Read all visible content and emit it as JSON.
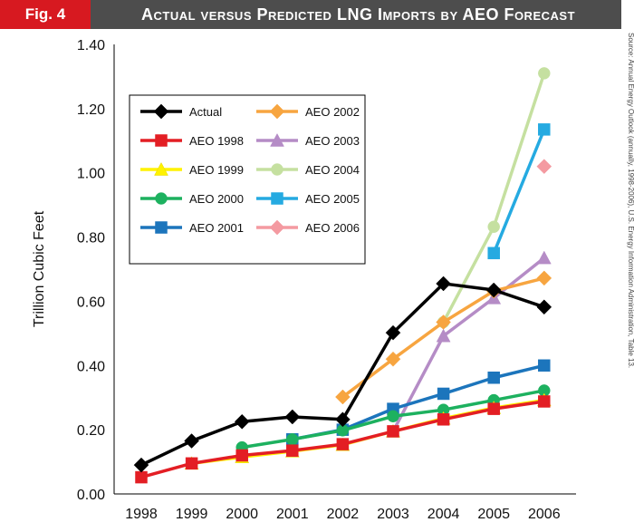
{
  "header": {
    "fig_label": "Fig. 4",
    "title": "Actual versus Predicted LNG Imports by AEO Forecast"
  },
  "source": "Source: Annual Energy Outlook (annually, 1998-2006), U.S. Energy Information Administration, Table 13.",
  "chart_data": {
    "type": "line",
    "ylabel": "Trillion Cubic Feet",
    "xlabel": "",
    "ylim": [
      0,
      1.4
    ],
    "yticks": [
      "0.00",
      "0.20",
      "0.40",
      "0.60",
      "0.80",
      "1.00",
      "1.20",
      "1.40"
    ],
    "x": [
      "1998",
      "1999",
      "2000",
      "2001",
      "2002",
      "2003",
      "2004",
      "2005",
      "2006"
    ],
    "legend_position": "top-left",
    "series": [
      {
        "name": "Actual",
        "color": "#000000",
        "marker": "diamond",
        "values": [
          0.09,
          0.165,
          0.225,
          0.24,
          0.232,
          0.502,
          0.655,
          0.635,
          0.582
        ]
      },
      {
        "name": "AEO 1998",
        "color": "#e31e24",
        "marker": "square",
        "values": [
          0.052,
          0.095,
          0.12,
          0.135,
          0.155,
          0.195,
          0.232,
          0.265,
          0.288
        ]
      },
      {
        "name": "AEO 1999",
        "color": "#fff200",
        "marker": "triangle",
        "values": [
          null,
          0.095,
          0.115,
          0.133,
          0.153,
          0.195,
          0.235,
          0.268,
          0.292
        ]
      },
      {
        "name": "AEO 2000",
        "color": "#1db15f",
        "marker": "circle",
        "values": [
          null,
          null,
          0.145,
          0.17,
          0.198,
          0.242,
          0.262,
          0.292,
          0.322
        ]
      },
      {
        "name": "AEO 2001",
        "color": "#1c75bc",
        "marker": "square",
        "values": [
          null,
          null,
          null,
          0.17,
          0.2,
          0.265,
          0.312,
          0.362,
          0.4
        ]
      },
      {
        "name": "AEO 2002",
        "color": "#f7a540",
        "marker": "diamond",
        "values": [
          null,
          null,
          null,
          null,
          0.302,
          0.42,
          0.535,
          0.632,
          0.672
        ]
      },
      {
        "name": "AEO 2003",
        "color": "#b58cc6",
        "marker": "triangle",
        "values": [
          null,
          null,
          null,
          null,
          null,
          0.195,
          0.492,
          0.61,
          0.735
        ]
      },
      {
        "name": "AEO 2004",
        "color": "#c5e0a0",
        "marker": "circle",
        "values": [
          null,
          null,
          null,
          null,
          null,
          null,
          0.535,
          0.832,
          1.31
        ]
      },
      {
        "name": "AEO 2005",
        "color": "#25aae1",
        "marker": "square",
        "values": [
          null,
          null,
          null,
          null,
          null,
          null,
          null,
          0.75,
          1.135
        ]
      },
      {
        "name": "AEO 2006",
        "color": "#f49aa1",
        "marker": "diamond",
        "values": [
          null,
          null,
          null,
          null,
          null,
          null,
          null,
          null,
          1.02
        ]
      }
    ]
  }
}
